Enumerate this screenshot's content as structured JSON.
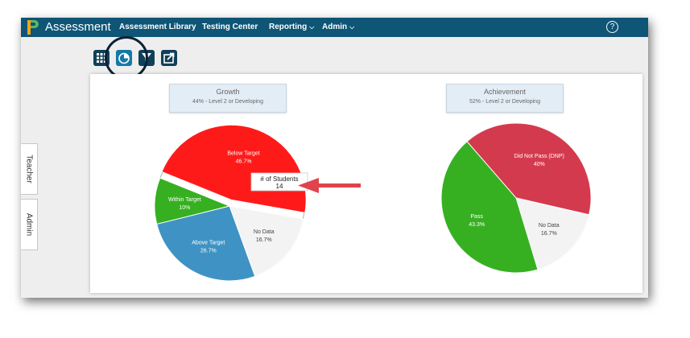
{
  "header": {
    "app_title": "Assessment",
    "nav": [
      {
        "label": "Assessment Library",
        "has_menu": false
      },
      {
        "label": "Testing Center",
        "has_menu": false
      },
      {
        "label": "Reporting",
        "has_menu": true
      },
      {
        "label": "Admin",
        "has_menu": true
      }
    ],
    "help_label": "?"
  },
  "toolbar": {
    "buttons": [
      {
        "icon": "grid-icon"
      },
      {
        "icon": "pie-chart-icon",
        "active": true
      },
      {
        "icon": "filter-icon"
      },
      {
        "icon": "export-icon"
      }
    ]
  },
  "side_tabs": [
    "Teacher",
    "Admin"
  ],
  "colors": {
    "header_bg": "#0e5576",
    "red": "#ff1a1a",
    "green": "#36b021",
    "blue": "#3e93c4",
    "crimson": "#d43a4e",
    "gray_slice": "#f3f3f3",
    "arrow": "#e0434c"
  },
  "chart_data": [
    {
      "type": "pie",
      "title": "Growth",
      "subtitle": "44% - Level 2 or Developing",
      "slices": [
        {
          "label": "Below Target",
          "percent_label": "46.7%",
          "value": 46.7,
          "color": "#ff1a1a",
          "exploded": true
        },
        {
          "label": "No Data",
          "percent_label": "16.7%",
          "value": 16.7,
          "color": "#f3f3f3"
        },
        {
          "label": "Above Target",
          "percent_label": "26.7%",
          "value": 26.7,
          "color": "#3e93c4"
        },
        {
          "label": "Within Target",
          "percent_label": "10%",
          "value": 10,
          "color": "#36b021"
        }
      ],
      "tooltip": {
        "label": "# of Students",
        "value": "14"
      }
    },
    {
      "type": "pie",
      "title": "Achievement",
      "subtitle": "52% - Level 2 or Developing",
      "slices": [
        {
          "label": "Did Not Pass (DNP)",
          "percent_label": "40%",
          "value": 40,
          "color": "#d43a4e"
        },
        {
          "label": "No Data",
          "percent_label": "16.7%",
          "value": 16.7,
          "color": "#f3f3f3"
        },
        {
          "label": "Pass",
          "percent_label": "43.3%",
          "value": 43.3,
          "color": "#36b021"
        }
      ]
    }
  ]
}
